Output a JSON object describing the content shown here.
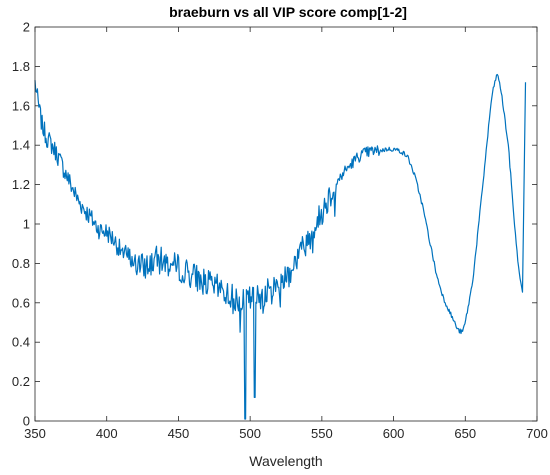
{
  "chart_data": {
    "type": "line",
    "title": "braeburn vs all VIP score comp[1-2]",
    "xlabel": "Wavelength",
    "ylabel": "",
    "xlim": [
      350,
      700
    ],
    "ylim": [
      0,
      2
    ],
    "xticks": [
      "350",
      "400",
      "450",
      "500",
      "550",
      "600",
      "650",
      "700"
    ],
    "yticks": [
      "0",
      "0.2",
      "0.4",
      "0.6",
      "0.8",
      "1",
      "1.2",
      "1.4",
      "1.6",
      "1.8",
      "2"
    ],
    "grid": false,
    "legend": "none",
    "line_color": "#0072BD",
    "series": [
      {
        "x": [
          350,
          352,
          355,
          358,
          360,
          365,
          370,
          375,
          380,
          385,
          390,
          395,
          400,
          405,
          410,
          415,
          420,
          425,
          430,
          435,
          440,
          445,
          450,
          455,
          460,
          465,
          470,
          475,
          480,
          485,
          490,
          495,
          500,
          505,
          510,
          515,
          520,
          525,
          530,
          535,
          540,
          545,
          550,
          555,
          560,
          565,
          570,
          575,
          580,
          585,
          590,
          595,
          600,
          605,
          610,
          615,
          620,
          625,
          630,
          635,
          640,
          645,
          648,
          650,
          655,
          660,
          665,
          668,
          670,
          672,
          674,
          676,
          680,
          685,
          688,
          690,
          692
        ],
        "y": [
          1.72,
          1.62,
          1.5,
          1.44,
          1.42,
          1.36,
          1.28,
          1.2,
          1.12,
          1.07,
          1.02,
          0.97,
          0.96,
          0.92,
          0.86,
          0.84,
          0.8,
          0.78,
          0.8,
          0.82,
          0.81,
          0.79,
          0.78,
          0.76,
          0.74,
          0.72,
          0.7,
          0.68,
          0.67,
          0.64,
          0.62,
          0.62,
          0.62,
          0.63,
          0.65,
          0.66,
          0.7,
          0.74,
          0.79,
          0.86,
          0.92,
          0.98,
          1.06,
          1.14,
          1.2,
          1.26,
          1.3,
          1.34,
          1.36,
          1.37,
          1.37,
          1.38,
          1.38,
          1.37,
          1.34,
          1.24,
          1.1,
          0.92,
          0.74,
          0.62,
          0.54,
          0.46,
          0.45,
          0.5,
          0.7,
          1.04,
          1.4,
          1.62,
          1.7,
          1.76,
          1.72,
          1.62,
          1.4,
          0.94,
          0.72,
          0.66,
          1.72
        ]
      }
    ]
  }
}
